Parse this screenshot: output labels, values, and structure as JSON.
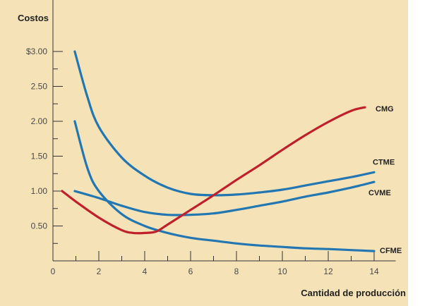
{
  "chart_data": {
    "type": "line",
    "ylabel": "Costos",
    "xlabel": "Cantidad de producción",
    "xlim": [
      0,
      15
    ],
    "ylim": [
      0,
      3.25
    ],
    "x_ticks": [
      0,
      2,
      4,
      6,
      8,
      10,
      12,
      14
    ],
    "y_ticks": [
      {
        "value": 3.0,
        "label": "$3.00"
      },
      {
        "value": 2.5,
        "label": "2.50"
      },
      {
        "value": 2.0,
        "label": "2.00"
      },
      {
        "value": 1.5,
        "label": "1.50"
      },
      {
        "value": 1.0,
        "label": "1.00"
      },
      {
        "value": 0.5,
        "label": "0.50"
      }
    ],
    "grid": false,
    "series": [
      {
        "name": "CMG",
        "color": "#c0202c",
        "x": [
          0.4,
          1,
          2,
          3,
          3.5,
          4,
          4.5,
          5,
          6,
          7,
          8,
          9,
          10,
          11,
          12,
          13,
          13.6
        ],
        "y": [
          1.0,
          0.85,
          0.62,
          0.44,
          0.4,
          0.4,
          0.42,
          0.52,
          0.73,
          0.94,
          1.16,
          1.37,
          1.59,
          1.8,
          1.99,
          2.15,
          2.2
        ]
      },
      {
        "name": "CTME",
        "color": "#2277b3",
        "x": [
          0.95,
          1.5,
          2,
          3,
          4,
          5,
          6,
          7,
          8,
          9,
          10,
          11,
          12,
          13,
          14
        ],
        "y": [
          3.0,
          2.35,
          1.92,
          1.48,
          1.22,
          1.05,
          0.96,
          0.94,
          0.95,
          0.98,
          1.02,
          1.08,
          1.14,
          1.2,
          1.27
        ]
      },
      {
        "name": "CVME",
        "color": "#2277b3",
        "x": [
          0.95,
          2,
          3,
          4,
          5,
          6,
          7,
          8,
          9,
          10,
          11,
          12,
          13,
          14
        ],
        "y": [
          1.0,
          0.9,
          0.79,
          0.7,
          0.66,
          0.66,
          0.68,
          0.73,
          0.79,
          0.85,
          0.92,
          0.98,
          1.05,
          1.13
        ]
      },
      {
        "name": "CFME",
        "color": "#2277b3",
        "x": [
          0.95,
          1.5,
          2,
          3,
          4,
          5,
          6,
          7,
          8,
          9,
          10,
          11,
          12,
          13,
          14
        ],
        "y": [
          2.0,
          1.33,
          1.0,
          0.67,
          0.5,
          0.4,
          0.33,
          0.29,
          0.25,
          0.22,
          0.2,
          0.18,
          0.17,
          0.155,
          0.14
        ]
      }
    ]
  }
}
